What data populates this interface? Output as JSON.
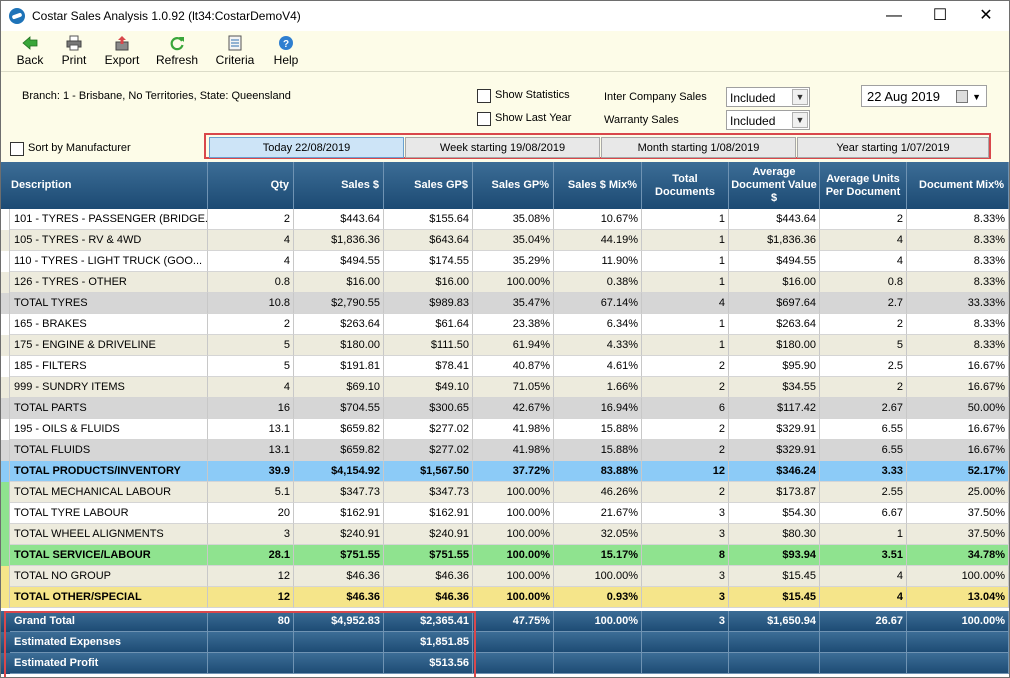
{
  "window": {
    "title": "Costar Sales Analysis 1.0.92 (lt34:CostarDemoV4)"
  },
  "toolbar": {
    "back": "Back",
    "print": "Print",
    "export": "Export",
    "refresh": "Refresh",
    "criteria": "Criteria",
    "help": "Help"
  },
  "filters": {
    "branch": "Branch: 1 - Brisbane, No Territories, State: Queensland",
    "show_statistics": "Show Statistics",
    "show_last_year": "Show Last Year",
    "sort_by_manufacturer": "Sort by Manufacturer",
    "inter_company_label": "Inter Company Sales",
    "inter_company_value": "Included",
    "warranty_label": "Warranty Sales",
    "warranty_value": "Included",
    "date": "22 Aug 2019"
  },
  "tabs": [
    "Today 22/08/2019",
    "Week starting 19/08/2019",
    "Month starting 1/08/2019",
    "Year starting 1/07/2019"
  ],
  "columns": [
    "Description",
    "Qty",
    "Sales $",
    "Sales GP$",
    "Sales GP%",
    "Sales $ Mix%",
    "Total Documents",
    "Average Document Value $",
    "Average Units Per Document",
    "Document Mix%"
  ],
  "rows": [
    {
      "style": "white",
      "cells": [
        "101 - TYRES - PASSENGER (BRIDGE...",
        "2",
        "$443.64",
        "$155.64",
        "35.08%",
        "10.67%",
        "1",
        "$443.64",
        "2",
        "8.33%"
      ]
    },
    {
      "style": "beige",
      "cells": [
        "105 - TYRES - RV & 4WD",
        "4",
        "$1,836.36",
        "$643.64",
        "35.04%",
        "44.19%",
        "1",
        "$1,836.36",
        "4",
        "8.33%"
      ]
    },
    {
      "style": "white",
      "cells": [
        "110 - TYRES - LIGHT TRUCK (GOO...",
        "4",
        "$494.55",
        "$174.55",
        "35.29%",
        "11.90%",
        "1",
        "$494.55",
        "4",
        "8.33%"
      ]
    },
    {
      "style": "beige",
      "cells": [
        "126 - TYRES - OTHER",
        "0.8",
        "$16.00",
        "$16.00",
        "100.00%",
        "0.38%",
        "1",
        "$16.00",
        "0.8",
        "8.33%"
      ]
    },
    {
      "style": "gray",
      "cells": [
        "TOTAL TYRES",
        "10.8",
        "$2,790.55",
        "$989.83",
        "35.47%",
        "67.14%",
        "4",
        "$697.64",
        "2.7",
        "33.33%"
      ]
    },
    {
      "style": "white",
      "cells": [
        "165 - BRAKES",
        "2",
        "$263.64",
        "$61.64",
        "23.38%",
        "6.34%",
        "1",
        "$263.64",
        "2",
        "8.33%"
      ]
    },
    {
      "style": "beige",
      "cells": [
        "175 - ENGINE & DRIVELINE",
        "5",
        "$180.00",
        "$111.50",
        "61.94%",
        "4.33%",
        "1",
        "$180.00",
        "5",
        "8.33%"
      ]
    },
    {
      "style": "white",
      "cells": [
        "185 - FILTERS",
        "5",
        "$191.81",
        "$78.41",
        "40.87%",
        "4.61%",
        "2",
        "$95.90",
        "2.5",
        "16.67%"
      ]
    },
    {
      "style": "beige",
      "cells": [
        "999 - SUNDRY ITEMS",
        "4",
        "$69.10",
        "$49.10",
        "71.05%",
        "1.66%",
        "2",
        "$34.55",
        "2",
        "16.67%"
      ]
    },
    {
      "style": "gray",
      "cells": [
        "TOTAL PARTS",
        "16",
        "$704.55",
        "$300.65",
        "42.67%",
        "16.94%",
        "6",
        "$117.42",
        "2.67",
        "50.00%"
      ]
    },
    {
      "style": "white",
      "cells": [
        "195 - OILS & FLUIDS",
        "13.1",
        "$659.82",
        "$277.02",
        "41.98%",
        "15.88%",
        "2",
        "$329.91",
        "6.55",
        "16.67%"
      ]
    },
    {
      "style": "gray",
      "cells": [
        "TOTAL FLUIDS",
        "13.1",
        "$659.82",
        "$277.02",
        "41.98%",
        "15.88%",
        "2",
        "$329.91",
        "6.55",
        "16.67%"
      ]
    },
    {
      "style": "blue",
      "cells": [
        "TOTAL PRODUCTS/INVENTORY",
        "39.9",
        "$4,154.92",
        "$1,567.50",
        "37.72%",
        "83.88%",
        "12",
        "$346.24",
        "3.33",
        "52.17%"
      ]
    },
    {
      "style": "beige",
      "cells": [
        "TOTAL MECHANICAL LABOUR",
        "5.1",
        "$347.73",
        "$347.73",
        "100.00%",
        "46.26%",
        "2",
        "$173.87",
        "2.55",
        "25.00%"
      ]
    },
    {
      "style": "white",
      "cells": [
        "TOTAL TYRE LABOUR",
        "20",
        "$162.91",
        "$162.91",
        "100.00%",
        "21.67%",
        "3",
        "$54.30",
        "6.67",
        "37.50%"
      ]
    },
    {
      "style": "beige",
      "cells": [
        "TOTAL WHEEL ALIGNMENTS",
        "3",
        "$240.91",
        "$240.91",
        "100.00%",
        "32.05%",
        "3",
        "$80.30",
        "1",
        "37.50%"
      ]
    },
    {
      "style": "green",
      "cells": [
        "TOTAL SERVICE/LABOUR",
        "28.1",
        "$751.55",
        "$751.55",
        "100.00%",
        "15.17%",
        "8",
        "$93.94",
        "3.51",
        "34.78%"
      ]
    },
    {
      "style": "beige",
      "cells": [
        "TOTAL NO GROUP",
        "12",
        "$46.36",
        "$46.36",
        "100.00%",
        "100.00%",
        "3",
        "$15.45",
        "4",
        "100.00%"
      ]
    },
    {
      "style": "yellow",
      "cells": [
        "TOTAL OTHER/SPECIAL",
        "12",
        "$46.36",
        "$46.36",
        "100.00%",
        "0.93%",
        "3",
        "$15.45",
        "4",
        "13.04%"
      ]
    }
  ],
  "totals": [
    {
      "cells": [
        "Grand Total",
        "80",
        "$4,952.83",
        "$2,365.41",
        "47.75%",
        "100.00%",
        "3",
        "$1,650.94",
        "26.67",
        "100.00%"
      ]
    },
    {
      "cells": [
        "Estimated Expenses",
        "",
        "",
        "$1,851.85",
        "",
        "",
        "",
        "",
        "",
        ""
      ]
    },
    {
      "cells": [
        "Estimated Profit",
        "",
        "",
        "$513.56",
        "",
        "",
        "",
        "",
        "",
        ""
      ]
    }
  ],
  "colors": {
    "header": "#1c4a73",
    "blue": "#8ccbf7",
    "green": "#8fe38f",
    "yellow": "#f5e58a",
    "gray": "#d6d6d6",
    "beige": "#edebdd",
    "accent": "#d9474b"
  }
}
